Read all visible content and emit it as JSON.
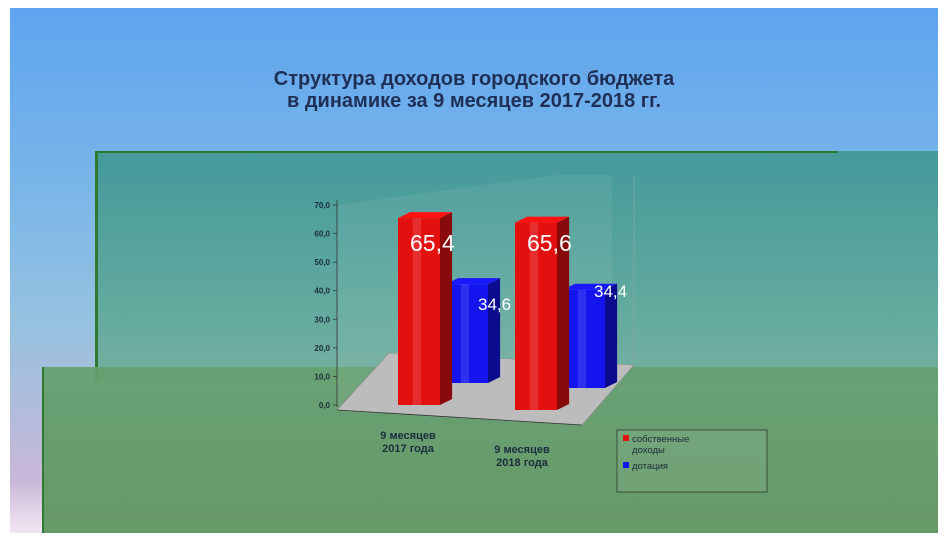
{
  "chart_data": {
    "type": "bar",
    "title_lines": [
      "Структура доходов городского бюджета",
      "в динамике за 9 месяцев 2017-2018 гг."
    ],
    "categories": [
      [
        "9 месяцев",
        "2017 года"
      ],
      [
        "9 месяцев",
        "2018 года"
      ]
    ],
    "series": [
      {
        "name": "собственные доходы",
        "legend_lines": [
          "собственные",
          "доходы"
        ],
        "values": [
          65.4,
          65.6
        ],
        "labels": [
          "65,4",
          "65,6"
        ],
        "color": "#e41010"
      },
      {
        "name": "дотация",
        "legend_lines": [
          "дотация"
        ],
        "values": [
          34.6,
          34.4
        ],
        "labels": [
          "34,6",
          "34,4"
        ],
        "color": "#1414ee"
      }
    ],
    "yticks": [
      "0,0",
      "10,0",
      "20,0",
      "30,0",
      "40,0",
      "50,0",
      "60,0",
      "70,0"
    ],
    "ylim": [
      0,
      70
    ],
    "style": "3d-column",
    "legend_position": "bottom-right"
  }
}
